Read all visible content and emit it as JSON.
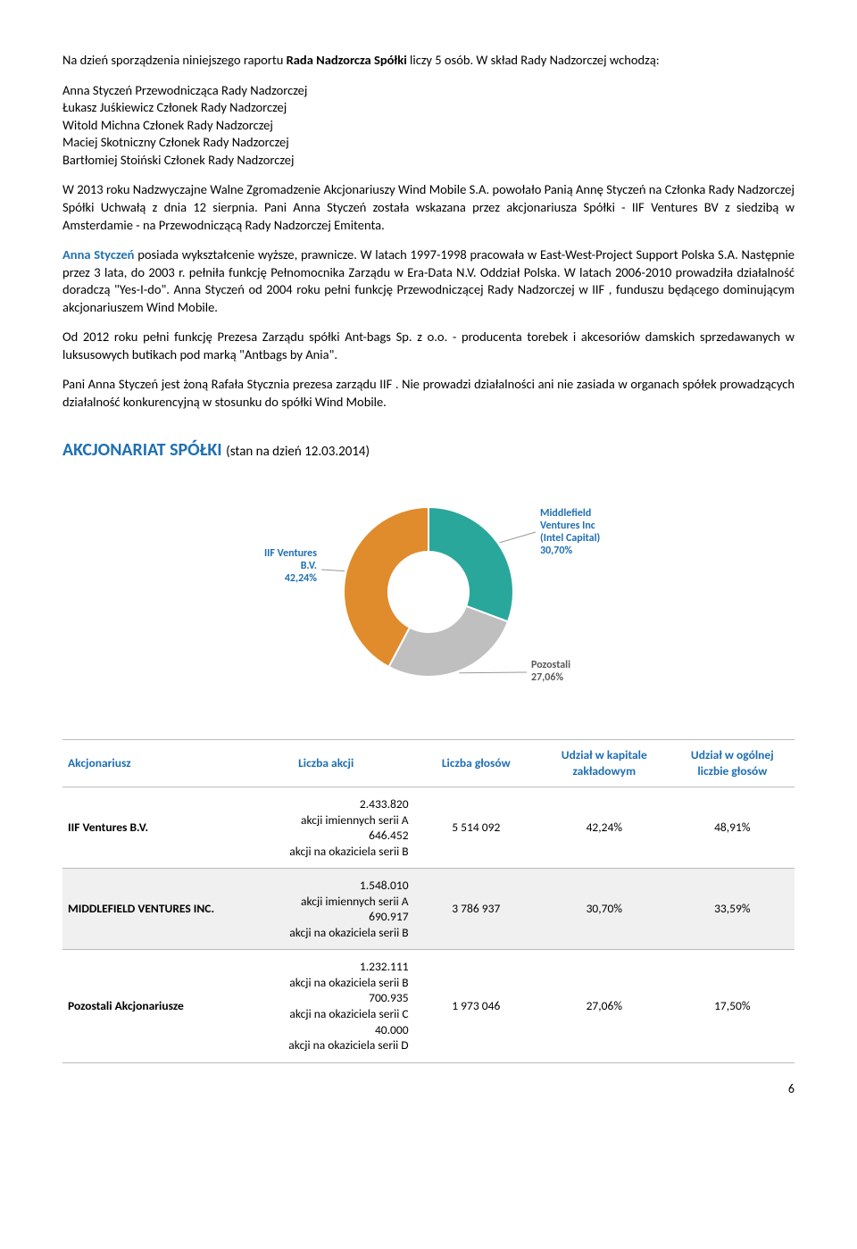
{
  "intro": {
    "line1_pre": "Na dzień sporządzenia niniejszego raportu ",
    "line1_bold": "Rada Nadzorcza Spółki ",
    "line1_post": "liczy 5 osób. W skład Rady Nadzorczej wchodzą:"
  },
  "members": [
    "Anna Styczeń Przewodnicząca Rady Nadzorczej",
    "Łukasz Juśkiewicz Członek Rady Nadzorczej",
    "Witold Michna Członek Rady Nadzorczej",
    "Maciej Skotniczny  Członek Rady Nadzorczej",
    "Bartłomiej Stoiński Członek Rady Nadzorczej"
  ],
  "para1": "W 2013 roku Nadzwyczajne Walne Zgromadzenie Akcjonariuszy Wind Mobile S.A. powołało Panią Annę Styczeń na Członka Rady Nadzorczej Spółki  Uchwałą z dnia 12 sierpnia. Pani Anna Styczeń została wskazana przez akcjonariusza Spółki - IIF Ventures BV z siedzibą w Amsterdamie - na Przewodniczącą Rady Nadzorczej Emitenta.",
  "para2_bold": "Anna Styczeń ",
  "para2_rest": "posiada wykształcenie wyższe, prawnicze. W latach 1997-1998 pracowała w East-West-Project Support Polska S.A. Następnie przez 3 lata, do 2003 r. pełniła funkcję Pełnomocnika Zarządu w Era-Data N.V. Oddział Polska. W latach 2006-2010 prowadziła działalność doradczą \"Yes-I-do\". Anna Styczeń od 2004 roku pełni funkcję Przewodniczącej  Rady Nadzorczej w IIF , funduszu będącego dominującym akcjonariuszem Wind Mobile.",
  "para3": "Od 2012 roku pełni funkcję Prezesa Zarządu spółki Ant-bags Sp.  z o.o. - producenta torebek i akcesoriów damskich sprzedawanych w luksusowych butikach pod marką \"Antbags by Ania\".",
  "para4": "Pani Anna Styczeń jest żoną Rafała Stycznia prezesa zarządu IIF . Nie prowadzi działalności ani nie zasiada w organach spółek prowadzących działalność konkurencyjną w stosunku do spółki Wind Mobile.",
  "section_title": "AKCJONARIAT SPÓŁKI ",
  "section_sub": "(stan na dzień 12.03.2014)",
  "chart": {
    "type": "donut",
    "slices": [
      {
        "label_lines": [
          "Middlefield",
          "Ventures Inc",
          "(Intel Capital)",
          "30,70%"
        ],
        "value": 30.7,
        "color": "#2aa79b",
        "label_color": "#1f6fb2"
      },
      {
        "label_lines": [
          "Pozostali",
          "27,06%"
        ],
        "value": 27.06,
        "color": "#bfbfbf",
        "label_color": "#5a5a5a"
      },
      {
        "label_lines": [
          "IIF Ventures",
          "B.V.",
          "42,24%"
        ],
        "value": 42.24,
        "color": "#e08b2c",
        "label_color": "#1f6fb2"
      }
    ],
    "inner_radius": 45,
    "outer_radius": 95,
    "bg": "#ffffff",
    "label_fontsize": 12,
    "label_fontweight": "bold"
  },
  "table": {
    "headers": [
      "Akcjonariusz",
      "Liczba akcji",
      "Liczba głosów",
      "Udział w kapitale zakładowym",
      "Udział w ogólnej liczbie głosów"
    ],
    "rows": [
      {
        "name": "IIF Ventures B.V.",
        "shares": [
          "2.433.820",
          "akcji imiennych serii A",
          "646.452",
          "akcji na okaziciela serii B"
        ],
        "votes": "5 514 092",
        "capital": "42,24%",
        "votes_pct": "48,91%",
        "alt": false
      },
      {
        "name": "MIDDLEFIELD VENTURES INC.",
        "shares": [
          "1.548.010",
          "akcji imiennych serii A",
          "690.917",
          "akcji na okaziciela serii B"
        ],
        "votes": "3 786 937",
        "capital": "30,70%",
        "votes_pct": "33,59%",
        "alt": true
      },
      {
        "name": "Pozostali Akcjonariusze",
        "shares": [
          "1.232.111",
          "akcji na okaziciela serii B",
          "700.935",
          "akcji na okaziciela serii C",
          "40.000",
          "akcji na okaziciela serii D"
        ],
        "votes": "1 973 046",
        "capital": "27,06%",
        "votes_pct": "17,50%",
        "alt": false
      }
    ]
  },
  "page_number": "6"
}
